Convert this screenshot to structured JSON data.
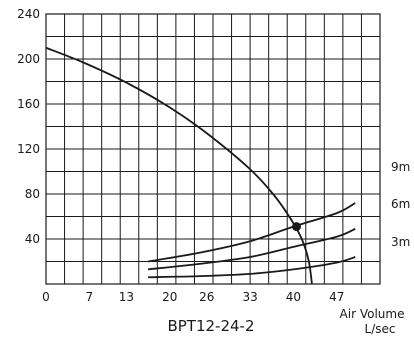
{
  "chart_data": {
    "type": "line",
    "title": "BPT12-24-2",
    "xlabel": "Air Volume",
    "xunit": "L/sec",
    "ylabel": "",
    "xlim": [
      0,
      54
    ],
    "ylim": [
      0,
      240
    ],
    "x_ticks": [
      0,
      7,
      13,
      20,
      26,
      33,
      40,
      47
    ],
    "y_ticks": [
      40,
      80,
      120,
      160,
      200,
      240
    ],
    "grid": true,
    "fan_curve": {
      "x": [
        0,
        6,
        13,
        20,
        26,
        33,
        37,
        40,
        41.5,
        42.5,
        43
      ],
      "y": [
        210,
        197,
        179,
        157,
        134,
        102,
        78,
        54,
        38,
        20,
        0
      ]
    },
    "system_curves": [
      {
        "label": "9m",
        "x": [
          16.5,
          25,
          33,
          40,
          47,
          50
        ],
        "y": [
          20,
          28,
          38,
          51,
          63,
          72
        ]
      },
      {
        "label": "6m",
        "x": [
          16.5,
          25,
          33,
          40,
          47,
          50
        ],
        "y": [
          13,
          18,
          24,
          33,
          42,
          49
        ]
      },
      {
        "label": "3m",
        "x": [
          16.5,
          25,
          33,
          40,
          47,
          50
        ],
        "y": [
          6,
          7,
          9,
          13,
          19,
          24
        ]
      }
    ],
    "operating_point": {
      "x": 40.5,
      "y": 51
    }
  }
}
